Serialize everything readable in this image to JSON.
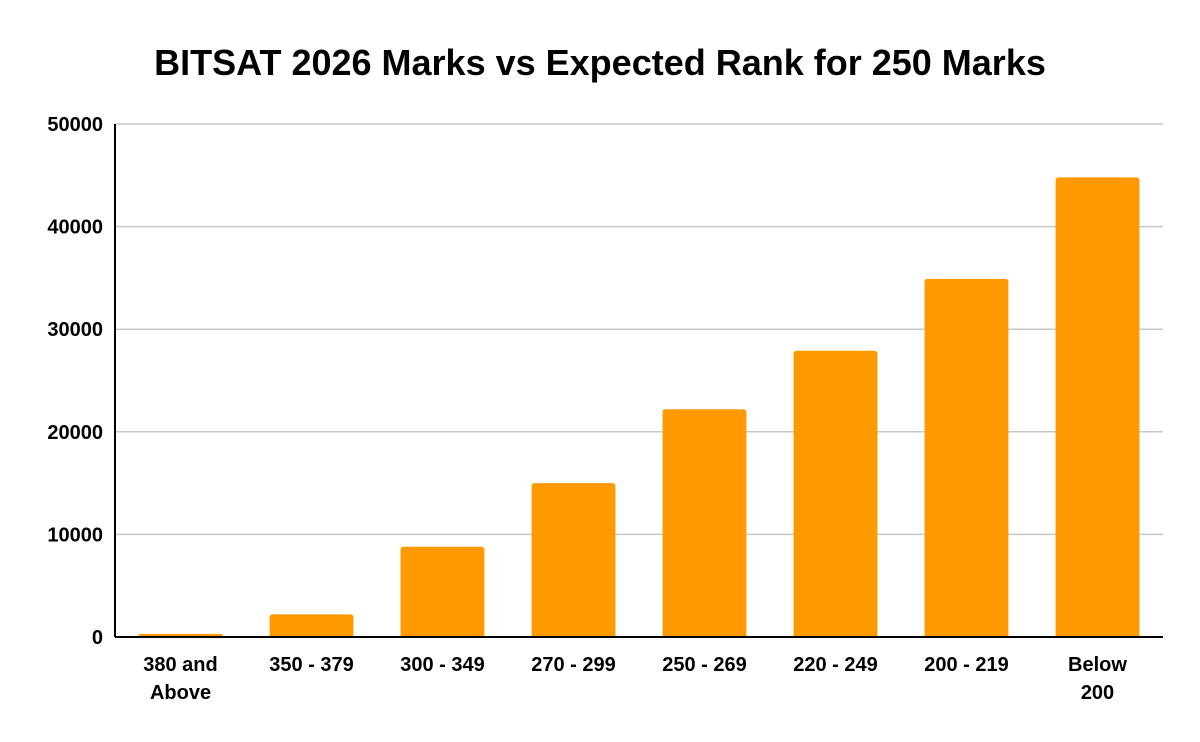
{
  "chart_data": {
    "type": "bar",
    "title": "BITSAT 2026 Marks vs Expected Rank for 250 Marks",
    "xlabel": "",
    "ylabel": "",
    "categories": [
      [
        "380 and",
        "Above"
      ],
      [
        "350 - 379"
      ],
      [
        "300 - 349"
      ],
      [
        "270 - 299"
      ],
      [
        "250 - 269"
      ],
      [
        "220 - 249"
      ],
      [
        "200 - 219"
      ],
      [
        "Below",
        "200"
      ]
    ],
    "values": [
      300,
      2200,
      8800,
      15000,
      22200,
      27900,
      34900,
      44800
    ],
    "ylim": [
      0,
      50000
    ],
    "yticks": [
      0,
      10000,
      20000,
      30000,
      40000,
      50000
    ],
    "grid": true,
    "legend": "none",
    "colors": {
      "bar": "#ff9900",
      "gridline": "#c8c8c8",
      "axis": "#000000",
      "text": "#000000"
    }
  }
}
